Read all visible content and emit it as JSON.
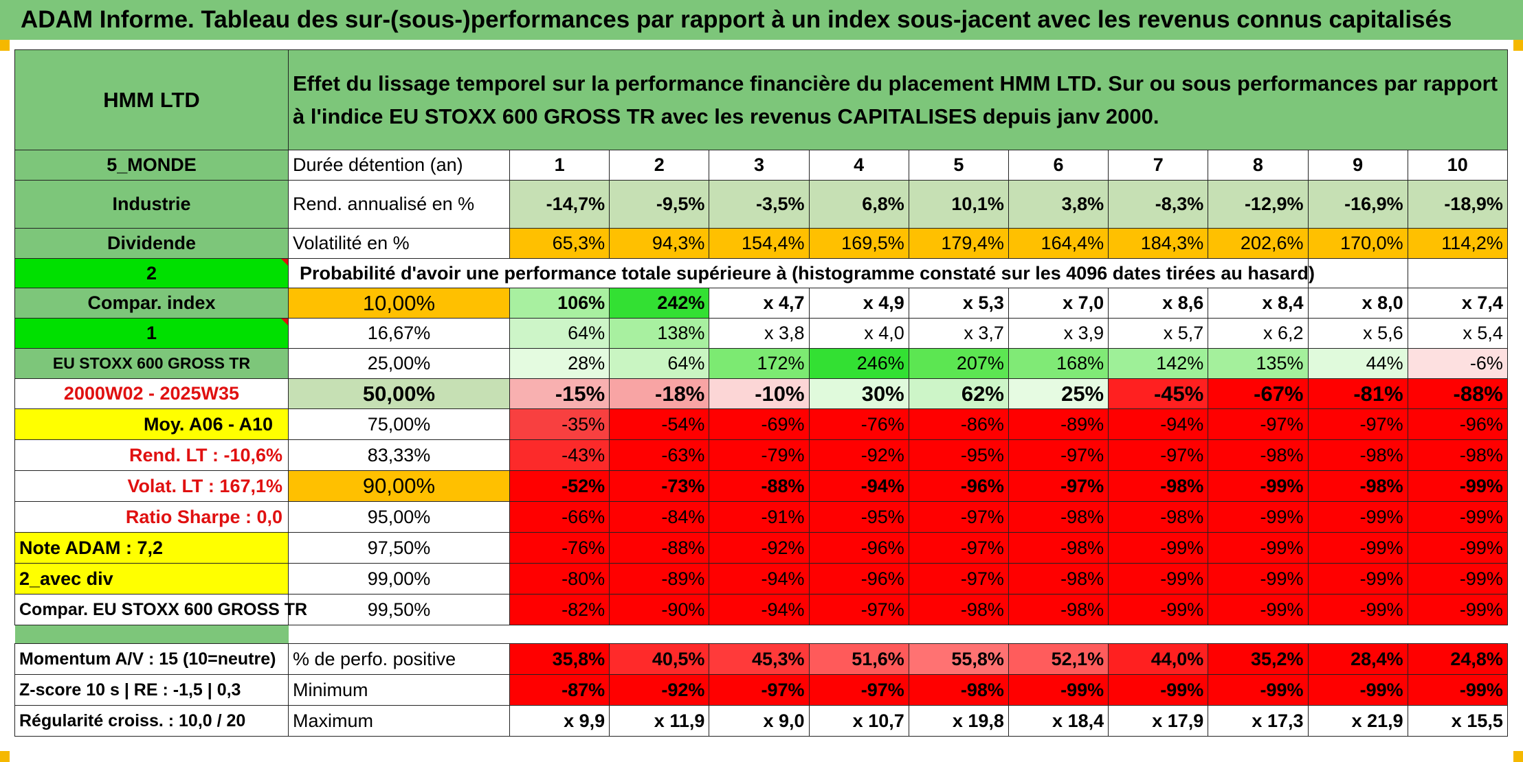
{
  "page_title": "ADAM Informe. Tableau des sur-(sous-)performances par rapport à un index sous-jacent avec les revenus connus capitalisés",
  "colors": {
    "title_band": "#7dc67a",
    "label_green": "#7dc67a",
    "light_green": "#c6e0b4",
    "orange": "#ffc000",
    "yellow": "#ffff00",
    "red": "#ff0000",
    "bright_green": "#00e000",
    "label_red_text": "#e01010"
  },
  "table": {
    "fund_name": "HMM LTD",
    "description": "Effet du lissage temporel sur la performance financière du placement HMM LTD. Sur ou sous performances par rapport à l'indice EU STOXX 600 GROSS TR avec les revenus CAPITALISES depuis janv 2000.",
    "holding_label": "Durée détention (an)",
    "years": [
      "1",
      "2",
      "3",
      "4",
      "5",
      "6",
      "7",
      "8",
      "9",
      "10"
    ],
    "stats": [
      {
        "left": "5_MONDE",
        "label": "Durée détention (an)"
      },
      {
        "left": "Industrie",
        "label": "Rend. annualisé en %",
        "values": [
          "-14,7%",
          "-9,5%",
          "-3,5%",
          "6,8%",
          "10,1%",
          "3,8%",
          "-8,3%",
          "-12,9%",
          "-16,9%",
          "-18,9%"
        ]
      },
      {
        "left": "Dividende",
        "label": "Volatilité en %",
        "values": [
          "65,3%",
          "94,3%",
          "154,4%",
          "169,5%",
          "179,4%",
          "164,4%",
          "184,3%",
          "202,6%",
          "170,0%",
          "114,2%"
        ]
      }
    ],
    "prob_left": "2",
    "prob_title": "Probabilité d'avoir une performance totale supérieure à (histogramme constaté sur les 4096 dates tirées au hasard)",
    "rows": [
      {
        "left": "Compar. index",
        "pct": "10,00%",
        "values": [
          "106%",
          "242%",
          "x 4,7",
          "x 4,9",
          "x 5,3",
          "x 7,0",
          "x 8,6",
          "x 8,4",
          "x 8,0",
          "x 7,4"
        ]
      },
      {
        "left": "1",
        "pct": "16,67%",
        "values": [
          "64%",
          "138%",
          "x 3,8",
          "x 4,0",
          "x 3,7",
          "x 3,9",
          "x 5,7",
          "x 6,2",
          "x 5,6",
          "x 5,4"
        ]
      },
      {
        "left": "EU STOXX 600 GROSS TR",
        "pct": "25,00%",
        "values": [
          "28%",
          "64%",
          "172%",
          "246%",
          "207%",
          "168%",
          "142%",
          "135%",
          "44%",
          "-6%"
        ]
      },
      {
        "left": "2000W02 - 2025W35",
        "pct": "50,00%",
        "values": [
          "-15%",
          "-18%",
          "-10%",
          "30%",
          "62%",
          "25%",
          "-45%",
          "-67%",
          "-81%",
          "-88%"
        ]
      },
      {
        "left": "Moy. A06 - A10",
        "pct": "75,00%",
        "values": [
          "-35%",
          "-54%",
          "-69%",
          "-76%",
          "-86%",
          "-89%",
          "-94%",
          "-97%",
          "-97%",
          "-96%"
        ]
      },
      {
        "left": "Rend. LT :   -10,6%",
        "pct": "83,33%",
        "values": [
          "-43%",
          "-63%",
          "-79%",
          "-92%",
          "-95%",
          "-97%",
          "-97%",
          "-98%",
          "-98%",
          "-98%"
        ]
      },
      {
        "left": "Volat. LT :   167,1%",
        "pct": "90,00%",
        "values": [
          "-52%",
          "-73%",
          "-88%",
          "-94%",
          "-96%",
          "-97%",
          "-98%",
          "-99%",
          "-98%",
          "-99%"
        ]
      },
      {
        "left": "Ratio Sharpe :    0,0",
        "pct": "95,00%",
        "values": [
          "-66%",
          "-84%",
          "-91%",
          "-95%",
          "-97%",
          "-98%",
          "-98%",
          "-99%",
          "-99%",
          "-99%"
        ]
      },
      {
        "left": "Note ADAM : 7,2",
        "pct": "97,50%",
        "values": [
          "-76%",
          "-88%",
          "-92%",
          "-96%",
          "-97%",
          "-98%",
          "-99%",
          "-99%",
          "-99%",
          "-99%"
        ]
      },
      {
        "left": "2_avec div",
        "pct": "99,00%",
        "values": [
          "-80%",
          "-89%",
          "-94%",
          "-96%",
          "-97%",
          "-98%",
          "-99%",
          "-99%",
          "-99%",
          "-99%"
        ]
      },
      {
        "left": "Compar. EU STOXX 600 GROSS TR",
        "pct": "99,50%",
        "values": [
          "-82%",
          "-90%",
          "-94%",
          "-97%",
          "-98%",
          "-98%",
          "-99%",
          "-99%",
          "-99%",
          "-99%"
        ]
      }
    ],
    "bottom": [
      {
        "left": "Momentum A/V : 15 (10=neutre)",
        "label": "% de perfo. positive",
        "values": [
          "35,8%",
          "40,5%",
          "45,3%",
          "51,6%",
          "55,8%",
          "52,1%",
          "44,0%",
          "35,2%",
          "28,4%",
          "24,8%"
        ]
      },
      {
        "left": "Z-score 10 s | RE : -1,5 | 0,3",
        "label": "Minimum",
        "values": [
          "-87%",
          "-92%",
          "-97%",
          "-97%",
          "-98%",
          "-99%",
          "-99%",
          "-99%",
          "-99%",
          "-99%"
        ]
      },
      {
        "left": "Régularité croiss. : 10,0 / 20",
        "label": "Maximum",
        "values": [
          "x 9,9",
          "x 11,9",
          "x 9,0",
          "x 10,7",
          "x 19,8",
          "x 18,4",
          "x 17,9",
          "x 17,3",
          "x 21,9",
          "x 15,5"
        ]
      }
    ]
  },
  "cell_colors": {
    "rend": [
      "#c6e0b4",
      "#c6e0b4",
      "#c6e0b4",
      "#c6e0b4",
      "#c6e0b4",
      "#c6e0b4",
      "#c6e0b4",
      "#c6e0b4",
      "#c6e0b4",
      "#c6e0b4"
    ],
    "vol": [
      "#ffc000",
      "#ffc000",
      "#ffc000",
      "#ffc000",
      "#ffc000",
      "#ffc000",
      "#ffc000",
      "#ffc000",
      "#ffc000",
      "#ffc000"
    ],
    "rows": [
      [
        "#a8f0a0",
        "#33e033",
        "#ffffff",
        "#ffffff",
        "#ffffff",
        "#ffffff",
        "#ffffff",
        "#ffffff",
        "#ffffff",
        "#ffffff"
      ],
      [
        "#cdf5c8",
        "#a8f0a0",
        "#ffffff",
        "#ffffff",
        "#ffffff",
        "#ffffff",
        "#ffffff",
        "#ffffff",
        "#ffffff",
        "#ffffff"
      ],
      [
        "#e4fbe0",
        "#c9f5c2",
        "#7cea72",
        "#33e033",
        "#5ce652",
        "#80ea76",
        "#9ef098",
        "#a4f09c",
        "#e0fadc",
        "#fde0e0"
      ],
      [
        "#f8b0b0",
        "#f8a4a4",
        "#fcd6d6",
        "#e0fadc",
        "#cdf5c8",
        "#e6fbe2",
        "#ff2020",
        "#ff0000",
        "#ff0000",
        "#ff0000"
      ],
      [
        "#f84040",
        "#ff0000",
        "#ff0000",
        "#ff0000",
        "#ff0000",
        "#ff0000",
        "#ff0000",
        "#ff0000",
        "#ff0000",
        "#ff0000"
      ],
      [
        "#fc2a2a",
        "#ff0000",
        "#ff0000",
        "#ff0000",
        "#ff0000",
        "#ff0000",
        "#ff0000",
        "#ff0000",
        "#ff0000",
        "#ff0000"
      ],
      [
        "#ff0000",
        "#ff0000",
        "#ff0000",
        "#ff0000",
        "#ff0000",
        "#ff0000",
        "#ff0000",
        "#ff0000",
        "#ff0000",
        "#ff0000"
      ],
      [
        "#ff0000",
        "#ff0000",
        "#ff0000",
        "#ff0000",
        "#ff0000",
        "#ff0000",
        "#ff0000",
        "#ff0000",
        "#ff0000",
        "#ff0000"
      ],
      [
        "#ff0000",
        "#ff0000",
        "#ff0000",
        "#ff0000",
        "#ff0000",
        "#ff0000",
        "#ff0000",
        "#ff0000",
        "#ff0000",
        "#ff0000"
      ],
      [
        "#ff0000",
        "#ff0000",
        "#ff0000",
        "#ff0000",
        "#ff0000",
        "#ff0000",
        "#ff0000",
        "#ff0000",
        "#ff0000",
        "#ff0000"
      ],
      [
        "#ff0000",
        "#ff0000",
        "#ff0000",
        "#ff0000",
        "#ff0000",
        "#ff0000",
        "#ff0000",
        "#ff0000",
        "#ff0000",
        "#ff0000"
      ]
    ],
    "positive": [
      "#ff0000",
      "#ff2a2a",
      "#ff3a3a",
      "#ff5a5a",
      "#ff7272",
      "#ff5c5c",
      "#ff2020",
      "#ff0000",
      "#ff0000",
      "#ff0000"
    ],
    "minimum": [
      "#ff0000",
      "#ff0000",
      "#ff0000",
      "#ff0000",
      "#ff0000",
      "#ff0000",
      "#ff0000",
      "#ff0000",
      "#ff0000",
      "#ff0000"
    ]
  }
}
